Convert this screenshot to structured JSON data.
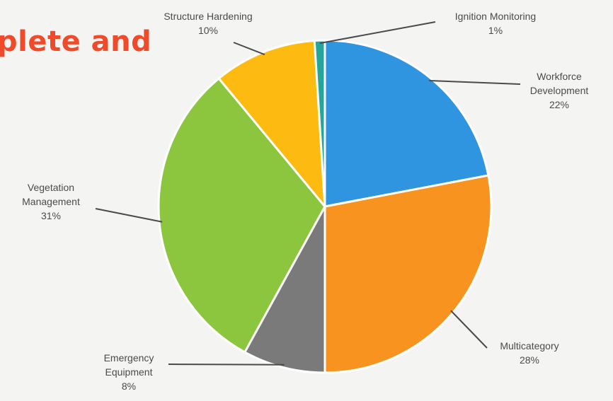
{
  "slide": {
    "heading_fragment": "plete and"
  },
  "chart_data": {
    "type": "pie",
    "title": "",
    "slices": [
      {
        "label_lines": [
          "Workforce",
          "Development"
        ],
        "value": 22,
        "value_label": "22%",
        "color": "#2f95e0"
      },
      {
        "label_lines": [
          "Multicategory"
        ],
        "value": 28,
        "value_label": "28%",
        "color": "#f7931e"
      },
      {
        "label_lines": [
          "Emergency",
          "Equipment"
        ],
        "value": 8,
        "value_label": "8%",
        "color": "#7a7a7a"
      },
      {
        "label_lines": [
          "Vegetation",
          "Management"
        ],
        "value": 31,
        "value_label": "31%",
        "color": "#8cc63f"
      },
      {
        "label_lines": [
          "Structure Hardening"
        ],
        "value": 10,
        "value_label": "10%",
        "color": "#fdbb12"
      },
      {
        "label_lines": [
          "Ignition  Monitoring"
        ],
        "value": 1,
        "value_label": "1%",
        "color": "#26a69a"
      }
    ],
    "start_angle_deg": 0,
    "direction": "clockwise",
    "legend": "none"
  }
}
